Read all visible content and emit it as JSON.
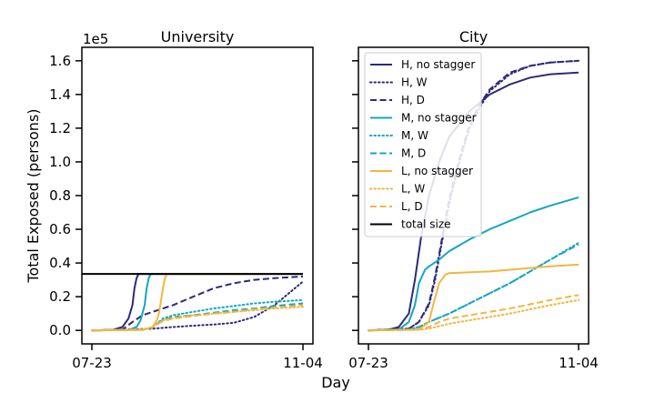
{
  "figure": {
    "ylabel": "Total Exposed (persons)",
    "xlabel": "Day",
    "y_multiplier": "1e5"
  },
  "chart_data": [
    {
      "type": "line",
      "title": "University",
      "xlabel": "Day",
      "ylabel": "Total Exposed (persons)",
      "x_ticks": [
        "07-23",
        "11-04"
      ],
      "xlim": [
        0,
        104
      ],
      "ylim": [
        -0.08,
        1.68
      ],
      "y_ticks": [
        0.0,
        0.2,
        0.4,
        0.6,
        0.8,
        1.0,
        1.2,
        1.4,
        1.6
      ],
      "y_tick_labels": [
        "0.0",
        "0.2",
        "0.4",
        "0.6",
        "0.8",
        "1.0",
        "1.2",
        "1.4",
        "1.6"
      ],
      "y_multiplier": "1e5",
      "legend": false,
      "series": [
        {
          "name": "H, no stagger",
          "color": "#2d2a7a",
          "dash": "solid",
          "x": [
            0,
            10,
            15,
            18,
            20,
            21,
            22,
            23,
            24,
            104
          ],
          "y": [
            0,
            0.002,
            0.02,
            0.07,
            0.15,
            0.25,
            0.31,
            0.335,
            0.335,
            0.335
          ]
        },
        {
          "name": "H, W",
          "color": "#2d2a7a",
          "dash": "dotted",
          "x": [
            0,
            30,
            40,
            50,
            60,
            70,
            80,
            90,
            104
          ],
          "y": [
            0,
            0.01,
            0.02,
            0.028,
            0.035,
            0.045,
            0.08,
            0.15,
            0.29
          ]
        },
        {
          "name": "H, D",
          "color": "#2d2a7a",
          "dash": "dashed",
          "x": [
            0,
            15,
            20,
            25,
            30,
            40,
            50,
            60,
            70,
            80,
            90,
            104
          ],
          "y": [
            0,
            0.005,
            0.05,
            0.09,
            0.11,
            0.15,
            0.2,
            0.25,
            0.28,
            0.3,
            0.31,
            0.32
          ]
        },
        {
          "name": "M, no stagger",
          "color": "#14a6c2",
          "dash": "solid",
          "x": [
            0,
            18,
            22,
            24,
            26,
            27,
            28,
            29,
            30,
            104
          ],
          "y": [
            0,
            0.002,
            0.02,
            0.06,
            0.15,
            0.25,
            0.31,
            0.335,
            0.335,
            0.335
          ]
        },
        {
          "name": "M, W",
          "color": "#14a6c2",
          "dash": "dotted",
          "x": [
            0,
            25,
            30,
            35,
            40,
            50,
            60,
            70,
            80,
            90,
            104
          ],
          "y": [
            0,
            0.005,
            0.02,
            0.07,
            0.09,
            0.11,
            0.13,
            0.145,
            0.16,
            0.17,
            0.18
          ]
        },
        {
          "name": "M, D",
          "color": "#14a6c2",
          "dash": "dashed",
          "x": [
            0,
            25,
            30,
            35,
            40,
            50,
            60,
            70,
            80,
            90,
            104
          ],
          "y": [
            0,
            0.005,
            0.02,
            0.06,
            0.08,
            0.09,
            0.105,
            0.12,
            0.13,
            0.145,
            0.16
          ]
        },
        {
          "name": "L, no stagger",
          "color": "#f2b641",
          "dash": "solid",
          "x": [
            0,
            25,
            30,
            32,
            33,
            34,
            35,
            36,
            37,
            38,
            104
          ],
          "y": [
            0,
            0.002,
            0.02,
            0.06,
            0.1,
            0.17,
            0.25,
            0.31,
            0.335,
            0.335,
            0.335
          ]
        },
        {
          "name": "L, W",
          "color": "#f2b641",
          "dash": "dotted",
          "x": [
            0,
            25,
            30,
            35,
            40,
            50,
            60,
            70,
            80,
            90,
            104
          ],
          "y": [
            0,
            0.005,
            0.02,
            0.06,
            0.075,
            0.09,
            0.1,
            0.11,
            0.12,
            0.13,
            0.14
          ]
        },
        {
          "name": "L, D",
          "color": "#f2b641",
          "dash": "dashed",
          "x": [
            0,
            25,
            30,
            35,
            40,
            50,
            60,
            70,
            80,
            90,
            104
          ],
          "y": [
            0,
            0.005,
            0.02,
            0.055,
            0.07,
            0.085,
            0.1,
            0.11,
            0.125,
            0.135,
            0.15
          ]
        },
        {
          "name": "total size",
          "color": "#000000",
          "dash": "solid",
          "x": [
            -12,
            104
          ],
          "y": [
            0.335,
            0.335
          ]
        }
      ]
    },
    {
      "type": "line",
      "title": "City",
      "x_ticks": [
        "07-23",
        "11-04"
      ],
      "xlim": [
        0,
        104
      ],
      "ylim": [
        -0.08,
        1.68
      ],
      "y_ticks": [
        0.0,
        0.2,
        0.4,
        0.6,
        0.8,
        1.0,
        1.2,
        1.4,
        1.6
      ],
      "legend": true,
      "legend_placement": "upper-left",
      "series": [
        {
          "name": "H, no stagger",
          "color": "#2d2a7a",
          "dash": "solid",
          "x": [
            0,
            10,
            15,
            20,
            23,
            26,
            30,
            35,
            40,
            50,
            60,
            70,
            80,
            90,
            104
          ],
          "y": [
            0,
            0.005,
            0.02,
            0.1,
            0.3,
            0.55,
            0.8,
            1.0,
            1.15,
            1.3,
            1.4,
            1.46,
            1.5,
            1.52,
            1.53
          ]
        },
        {
          "name": "H, W",
          "color": "#2d2a7a",
          "dash": "dotted",
          "x": [
            0,
            20,
            25,
            30,
            33,
            36,
            40,
            45,
            50,
            55,
            60,
            70,
            80,
            90,
            104
          ],
          "y": [
            0,
            0.01,
            0.05,
            0.15,
            0.3,
            0.5,
            0.75,
            1.0,
            1.2,
            1.32,
            1.42,
            1.52,
            1.57,
            1.59,
            1.6
          ]
        },
        {
          "name": "H, D",
          "color": "#2d2a7a",
          "dash": "dashed",
          "x": [
            0,
            20,
            25,
            30,
            33,
            36,
            40,
            45,
            50,
            55,
            60,
            70,
            80,
            90,
            104
          ],
          "y": [
            0,
            0.01,
            0.05,
            0.16,
            0.32,
            0.52,
            0.78,
            1.02,
            1.22,
            1.34,
            1.43,
            1.53,
            1.57,
            1.59,
            1.6
          ]
        },
        {
          "name": "M, no stagger",
          "color": "#14a6c2",
          "dash": "solid",
          "x": [
            0,
            15,
            20,
            23,
            25,
            28,
            30,
            35,
            40,
            50,
            60,
            70,
            80,
            90,
            104
          ],
          "y": [
            0,
            0.005,
            0.05,
            0.15,
            0.28,
            0.36,
            0.38,
            0.42,
            0.47,
            0.54,
            0.6,
            0.65,
            0.7,
            0.74,
            0.79
          ]
        },
        {
          "name": "M, W",
          "color": "#14a6c2",
          "dash": "dotted",
          "x": [
            0,
            20,
            25,
            30,
            40,
            50,
            60,
            70,
            80,
            90,
            104
          ],
          "y": [
            0,
            0.005,
            0.02,
            0.05,
            0.1,
            0.16,
            0.22,
            0.28,
            0.35,
            0.42,
            0.52
          ]
        },
        {
          "name": "M, D",
          "color": "#14a6c2",
          "dash": "dashed",
          "x": [
            0,
            20,
            25,
            30,
            40,
            50,
            60,
            70,
            80,
            90,
            104
          ],
          "y": [
            0,
            0.005,
            0.02,
            0.05,
            0.1,
            0.16,
            0.22,
            0.28,
            0.35,
            0.42,
            0.51
          ]
        },
        {
          "name": "L, no stagger",
          "color": "#f2b641",
          "dash": "solid",
          "x": [
            0,
            25,
            30,
            32,
            35,
            38,
            40,
            50,
            60,
            70,
            80,
            90,
            104
          ],
          "y": [
            0,
            0.005,
            0.05,
            0.15,
            0.28,
            0.33,
            0.34,
            0.345,
            0.35,
            0.36,
            0.37,
            0.38,
            0.39
          ]
        },
        {
          "name": "L, W",
          "color": "#f2b641",
          "dash": "dotted",
          "x": [
            0,
            25,
            30,
            35,
            40,
            50,
            60,
            70,
            80,
            90,
            104
          ],
          "y": [
            0,
            0.003,
            0.01,
            0.025,
            0.04,
            0.06,
            0.08,
            0.1,
            0.125,
            0.15,
            0.18
          ]
        },
        {
          "name": "L, D",
          "color": "#f2b641",
          "dash": "dashed",
          "x": [
            0,
            25,
            30,
            35,
            40,
            50,
            60,
            70,
            80,
            90,
            104
          ],
          "y": [
            0,
            0.005,
            0.02,
            0.05,
            0.07,
            0.09,
            0.11,
            0.13,
            0.155,
            0.18,
            0.21
          ]
        },
        {
          "name": "total size",
          "color": "#000000",
          "dash": "solid",
          "x": [],
          "y": []
        }
      ]
    }
  ]
}
